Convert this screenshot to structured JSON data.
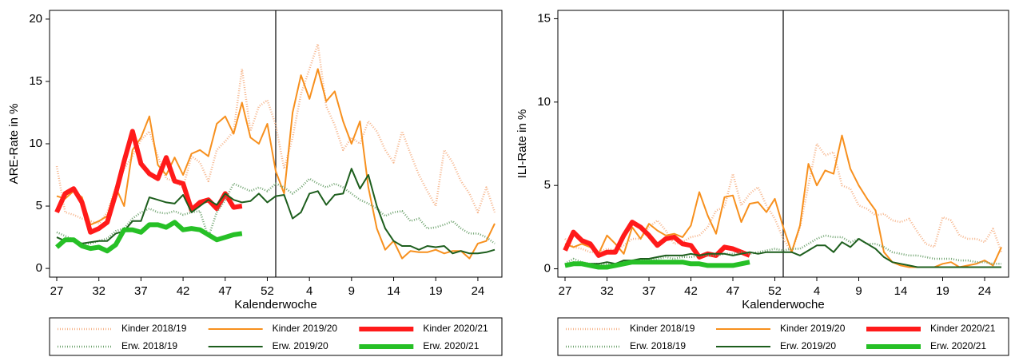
{
  "chart_data": [
    {
      "type": "line",
      "y_label": "ARE-Rate in %",
      "x_label": "Kalenderwoche",
      "categories": [
        "27",
        null,
        null,
        null,
        null,
        "32",
        null,
        null,
        null,
        null,
        "37",
        null,
        null,
        null,
        null,
        "42",
        null,
        null,
        null,
        null,
        "47",
        null,
        null,
        null,
        null,
        "52",
        null,
        null,
        null,
        null,
        "4",
        null,
        null,
        null,
        null,
        "9",
        null,
        null,
        null,
        null,
        "14",
        null,
        null,
        null,
        null,
        "19",
        null,
        null,
        null,
        null,
        "24",
        null,
        null
      ],
      "ylim": [
        -0.7,
        20.7
      ],
      "yticks": [
        0,
        5,
        10,
        15,
        20
      ],
      "series": [
        {
          "name": "Kinder 2018/19",
          "color": "#f6b48a",
          "style": "dotted",
          "values": [
            8.2,
            4.5,
            4.3,
            4.0,
            3.8,
            3.6,
            4.5,
            6.5,
            8.0,
            9.0,
            10.3,
            11.0,
            9.0,
            7.2,
            7.0,
            6.5,
            9.0,
            8.5,
            7.0,
            9.5,
            10.2,
            11.0,
            16.0,
            11.0,
            13.0,
            13.5,
            11.5,
            8.0,
            10.5,
            14.0,
            16.0,
            18.0,
            13.0,
            11.5,
            9.5,
            10.5,
            10.0,
            11.8,
            11.0,
            9.5,
            8.5,
            11.0,
            9.2,
            7.5,
            6.2,
            5.0,
            9.5,
            8.5,
            7.0,
            6.0,
            4.5,
            6.5,
            4.5
          ]
        },
        {
          "name": "Kinder 2019/20",
          "color": "#f7901e",
          "style": "solid",
          "values": [
            5.8,
            5.6,
            6.2,
            5.7,
            3.5,
            3.8,
            4.2,
            6.5,
            5.0,
            9.5,
            10.5,
            12.2,
            8.3,
            7.5,
            8.9,
            7.5,
            9.2,
            9.5,
            9.0,
            11.6,
            12.2,
            10.8,
            13.3,
            10.5,
            10.0,
            11.6,
            7.8,
            6.0,
            12.5,
            15.5,
            13.6,
            16.0,
            13.4,
            14.2,
            11.8,
            10.0,
            11.8,
            6.5,
            3.2,
            1.5,
            2.2,
            0.8,
            1.4,
            1.3,
            1.3,
            1.5,
            1.2,
            1.4,
            1.4,
            0.8,
            2.0,
            2.2,
            3.6
          ]
        },
        {
          "name": "Kinder 2020/21",
          "color": "#ff1a1a",
          "style": "thick",
          "values": [
            4.5,
            6.0,
            6.4,
            5.3,
            2.9,
            3.2,
            3.7,
            6.0,
            8.6,
            11.0,
            8.4,
            7.6,
            7.2,
            8.9,
            7.0,
            6.8,
            4.7,
            5.3,
            5.5,
            4.8,
            6.0,
            4.9,
            5.0,
            null,
            null,
            null,
            null,
            null,
            null,
            null,
            null,
            null,
            null,
            null,
            null,
            null,
            null,
            null,
            null,
            null,
            null,
            null,
            null,
            null,
            null,
            null,
            null,
            null,
            null,
            null,
            null,
            null,
            null
          ]
        },
        {
          "name": "Erw. 2018/19",
          "color": "#6fa36f",
          "style": "dotted",
          "values": [
            2.9,
            2.6,
            2.3,
            2.0,
            2.0,
            2.2,
            2.4,
            3.0,
            3.2,
            4.0,
            4.5,
            4.8,
            4.5,
            4.4,
            4.6,
            4.3,
            4.5,
            4.6,
            2.5,
            4.5,
            5.5,
            6.8,
            6.5,
            6.2,
            6.5,
            6.2,
            6.8,
            6.5,
            6.0,
            6.5,
            7.2,
            6.8,
            6.5,
            6.8,
            6.5,
            6.0,
            5.5,
            5.2,
            4.8,
            4.2,
            4.5,
            4.6,
            3.8,
            4.0,
            3.2,
            3.3,
            3.5,
            3.8,
            3.2,
            2.8,
            2.8,
            2.5,
            2.0
          ]
        },
        {
          "name": "Erw. 2019/20",
          "color": "#1d5e1d",
          "style": "solid",
          "values": [
            2.5,
            2.2,
            2.2,
            2.0,
            2.1,
            2.2,
            2.2,
            2.8,
            3.0,
            3.8,
            3.8,
            5.7,
            5.5,
            5.3,
            5.2,
            5.9,
            4.5,
            5.0,
            5.5,
            5.1,
            6.0,
            5.5,
            5.3,
            5.4,
            6.0,
            5.3,
            5.8,
            5.9,
            4.0,
            4.5,
            6.0,
            6.2,
            5.1,
            5.9,
            6.0,
            8.0,
            6.4,
            7.5,
            5.0,
            3.2,
            2.2,
            1.8,
            1.8,
            1.5,
            1.8,
            1.7,
            1.8,
            1.2,
            1.4,
            1.2,
            1.2,
            1.3,
            1.5
          ]
        },
        {
          "name": "Erw. 2020/21",
          "color": "#26c026",
          "style": "thick",
          "values": [
            1.7,
            2.3,
            2.3,
            1.8,
            1.6,
            1.7,
            1.4,
            1.9,
            3.1,
            3.1,
            2.9,
            3.5,
            3.5,
            3.3,
            3.7,
            3.1,
            3.2,
            3.1,
            2.7,
            2.3,
            2.5,
            2.7,
            2.8,
            null,
            null,
            null,
            null,
            null,
            null,
            null,
            null,
            null,
            null,
            null,
            null,
            null,
            null,
            null,
            null,
            null,
            null,
            null,
            null,
            null,
            null,
            null,
            null,
            null,
            null,
            null,
            null,
            null,
            null
          ]
        }
      ]
    },
    {
      "type": "line",
      "y_label": "ILI-Rate in %",
      "x_label": "Kalenderwoche",
      "categories": [
        "27",
        null,
        null,
        null,
        null,
        "32",
        null,
        null,
        null,
        null,
        "37",
        null,
        null,
        null,
        null,
        "42",
        null,
        null,
        null,
        null,
        "47",
        null,
        null,
        null,
        null,
        "52",
        null,
        null,
        null,
        null,
        "4",
        null,
        null,
        null,
        null,
        "9",
        null,
        null,
        null,
        null,
        "14",
        null,
        null,
        null,
        null,
        "19",
        null,
        null,
        null,
        null,
        "24",
        null,
        null
      ],
      "ylim": [
        -0.5,
        15.5
      ],
      "yticks": [
        0,
        5,
        10,
        15
      ],
      "series": [
        {
          "name": "Kinder 2018/19",
          "color": "#f6b48a",
          "style": "dotted",
          "values": [
            1.8,
            1.3,
            1.2,
            1.0,
            1.0,
            1.2,
            1.1,
            1.4,
            1.8,
            1.8,
            2.5,
            2.9,
            2.3,
            1.5,
            1.6,
            1.9,
            2.0,
            2.5,
            3.5,
            3.7,
            5.7,
            3.8,
            4.5,
            4.9,
            3.8,
            3.0,
            1.8,
            1.0,
            2.5,
            5.0,
            7.5,
            6.8,
            7.0,
            5.0,
            4.8,
            3.8,
            3.6,
            3.2,
            3.3,
            2.9,
            2.8,
            3.0,
            2.2,
            1.5,
            1.3,
            3.1,
            2.9,
            2.0,
            1.8,
            1.8,
            1.6,
            2.4,
            1.0
          ]
        },
        {
          "name": "Kinder 2019/20",
          "color": "#f7901e",
          "style": "solid",
          "values": [
            1.5,
            1.3,
            1.5,
            1.3,
            0.9,
            2.0,
            1.5,
            0.9,
            2.5,
            1.8,
            2.7,
            2.3,
            2.0,
            2.1,
            1.9,
            2.6,
            4.6,
            3.2,
            2.1,
            4.3,
            4.4,
            2.8,
            3.9,
            4.0,
            3.4,
            4.2,
            2.5,
            1.0,
            2.6,
            6.3,
            5.0,
            5.9,
            5.7,
            8.0,
            6.0,
            5.0,
            4.2,
            3.5,
            1.0,
            0.4,
            0.2,
            0.1,
            0.1,
            0.1,
            0.1,
            0.3,
            0.4,
            0.1,
            0.2,
            0.3,
            0.5,
            0.2,
            1.3
          ]
        },
        {
          "name": "Kinder 2020/21",
          "color": "#ff1a1a",
          "style": "thick",
          "values": [
            1.1,
            2.2,
            1.7,
            1.5,
            0.8,
            1.0,
            1.0,
            2.0,
            2.8,
            2.5,
            2.0,
            1.4,
            1.8,
            1.9,
            1.5,
            1.4,
            0.7,
            0.9,
            0.8,
            1.3,
            1.2,
            1.0,
            0.8,
            null,
            null,
            null,
            null,
            null,
            null,
            null,
            null,
            null,
            null,
            null,
            null,
            null,
            null,
            null,
            null,
            null,
            null,
            null,
            null,
            null,
            null,
            null,
            null,
            null,
            null,
            null,
            null,
            null,
            null
          ]
        },
        {
          "name": "Erw. 2018/19",
          "color": "#6fa36f",
          "style": "dotted",
          "values": [
            0.3,
            0.6,
            0.4,
            0.3,
            0.3,
            0.3,
            0.3,
            0.4,
            0.5,
            0.5,
            0.5,
            0.6,
            0.7,
            0.6,
            0.7,
            0.7,
            0.8,
            0.8,
            0.8,
            0.9,
            0.9,
            1.0,
            0.9,
            1.0,
            1.1,
            1.2,
            1.1,
            1.2,
            1.2,
            1.5,
            1.8,
            2.0,
            1.9,
            1.9,
            1.6,
            1.8,
            1.5,
            1.5,
            1.3,
            1.0,
            0.9,
            0.8,
            0.8,
            0.7,
            0.6,
            0.6,
            0.6,
            0.5,
            0.5,
            0.4,
            0.4,
            0.3,
            0.3
          ]
        },
        {
          "name": "Erw. 2019/20",
          "color": "#1d5e1d",
          "style": "solid",
          "values": [
            0.2,
            0.4,
            0.3,
            0.3,
            0.3,
            0.4,
            0.3,
            0.5,
            0.5,
            0.6,
            0.6,
            0.7,
            0.8,
            0.8,
            0.8,
            0.9,
            0.8,
            0.9,
            0.9,
            0.9,
            0.8,
            0.9,
            1.0,
            0.9,
            1.0,
            1.0,
            1.0,
            1.0,
            0.8,
            1.1,
            1.4,
            1.4,
            1.0,
            1.6,
            1.3,
            1.8,
            1.5,
            1.2,
            0.7,
            0.4,
            0.3,
            0.2,
            0.1,
            0.1,
            0.1,
            0.1,
            0.1,
            0.1,
            0.1,
            0.1,
            0.1,
            0.1,
            0.1
          ]
        },
        {
          "name": "Erw. 2020/21",
          "color": "#26c026",
          "style": "thick",
          "values": [
            0.2,
            0.3,
            0.3,
            0.2,
            0.1,
            0.1,
            0.2,
            0.3,
            0.4,
            0.4,
            0.4,
            0.4,
            0.4,
            0.4,
            0.4,
            0.3,
            0.3,
            0.2,
            0.2,
            0.2,
            0.2,
            0.3,
            0.4,
            null,
            null,
            null,
            null,
            null,
            null,
            null,
            null,
            null,
            null,
            null,
            null,
            null,
            null,
            null,
            null,
            null,
            null,
            null,
            null,
            null,
            null,
            null,
            null,
            null,
            null,
            null,
            null,
            null,
            null
          ]
        }
      ]
    }
  ]
}
